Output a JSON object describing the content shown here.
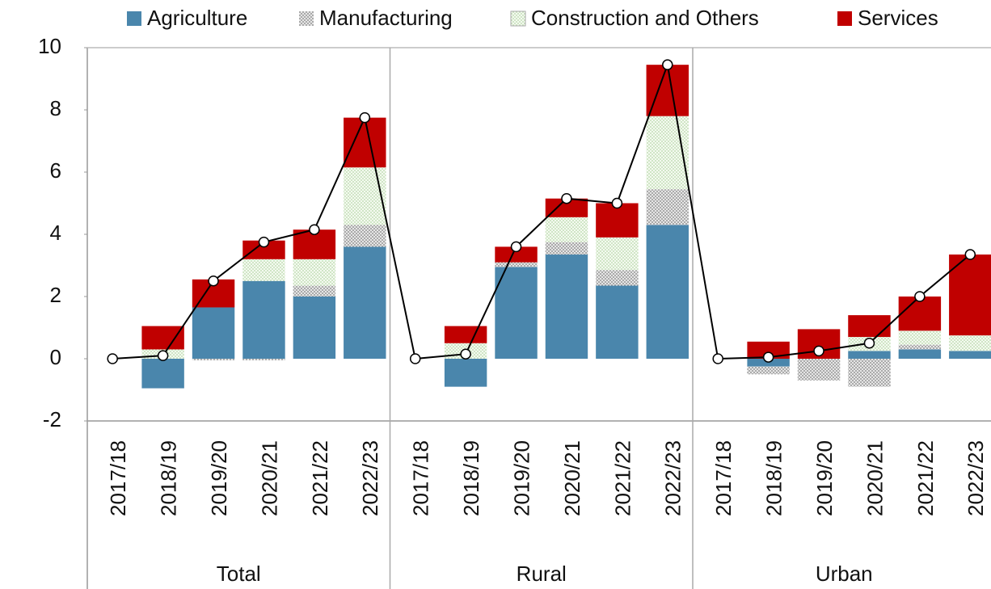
{
  "chart_data": {
    "type": "stacked-bar-line",
    "groups": [
      "Total",
      "Rural",
      "Urban"
    ],
    "categories": [
      "2017/18",
      "2018/19",
      "2019/20",
      "2020/21",
      "2021/22",
      "2022/23",
      "2017/18",
      "2018/19",
      "2019/20",
      "2020/21",
      "2021/22",
      "2022/23",
      "2017/18",
      "2018/19",
      "2019/20",
      "2020/21",
      "2021/22",
      "2022/23"
    ],
    "series": [
      {
        "name": "Agriculture",
        "color": "#4a86ac",
        "pattern": false,
        "values": [
          0,
          -0.95,
          1.65,
          2.5,
          2.0,
          3.6,
          0,
          -0.9,
          2.95,
          3.35,
          2.35,
          4.3,
          0,
          -0.25,
          0,
          0.25,
          0.3,
          0.25
        ]
      },
      {
        "name": "Manufacturing",
        "color": "#7f7f7f",
        "pattern": true,
        "values": [
          0,
          0,
          -0.05,
          -0.05,
          0.35,
          0.7,
          0,
          0,
          0.15,
          0.4,
          0.5,
          1.15,
          0,
          -0.25,
          -0.7,
          -0.9,
          0.15,
          0
        ]
      },
      {
        "name": "Construction and Others",
        "color": "#b7d7a8",
        "pattern": true,
        "values": [
          0,
          0.3,
          0,
          0.7,
          0.85,
          1.85,
          0,
          0.5,
          0,
          0.8,
          1.05,
          2.35,
          0,
          0,
          0,
          0.45,
          0.45,
          0.5
        ]
      },
      {
        "name": "Services",
        "color": "#c00000",
        "pattern": false,
        "values": [
          0,
          0.75,
          0.9,
          0.6,
          0.95,
          1.6,
          0,
          0.55,
          0.5,
          0.6,
          1.1,
          1.65,
          0,
          0.55,
          0.95,
          0.7,
          1.1,
          2.6
        ]
      }
    ],
    "line": {
      "color": "#000000",
      "values": [
        0,
        0.1,
        2.5,
        3.75,
        4.15,
        7.75,
        0,
        0.15,
        3.6,
        5.15,
        5.0,
        9.45,
        0,
        0.05,
        0.25,
        0.5,
        2.0,
        3.35
      ]
    },
    "ylim": [
      -2,
      10
    ],
    "yticks": [
      -2,
      0,
      2,
      4,
      6,
      8,
      10
    ]
  }
}
